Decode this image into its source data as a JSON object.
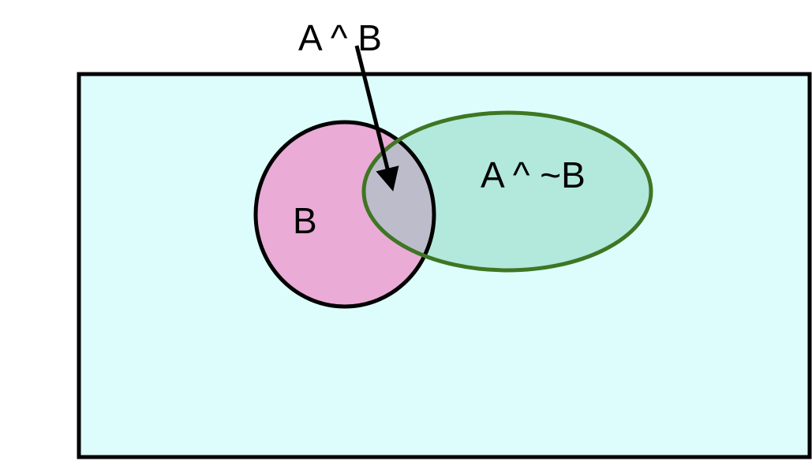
{
  "labels": {
    "b": "B",
    "a_and_b": "A ^ B",
    "a_and_not_b": "A ^ ~B"
  },
  "colors": {
    "universe_fill": "#ddfdfd",
    "set_b_fill": "#eaabd6",
    "set_a_fill": "#b2e9dc",
    "intersection_fill": "#bcbccb",
    "set_a_stroke": "#3e7623",
    "outline": "#000000"
  }
}
